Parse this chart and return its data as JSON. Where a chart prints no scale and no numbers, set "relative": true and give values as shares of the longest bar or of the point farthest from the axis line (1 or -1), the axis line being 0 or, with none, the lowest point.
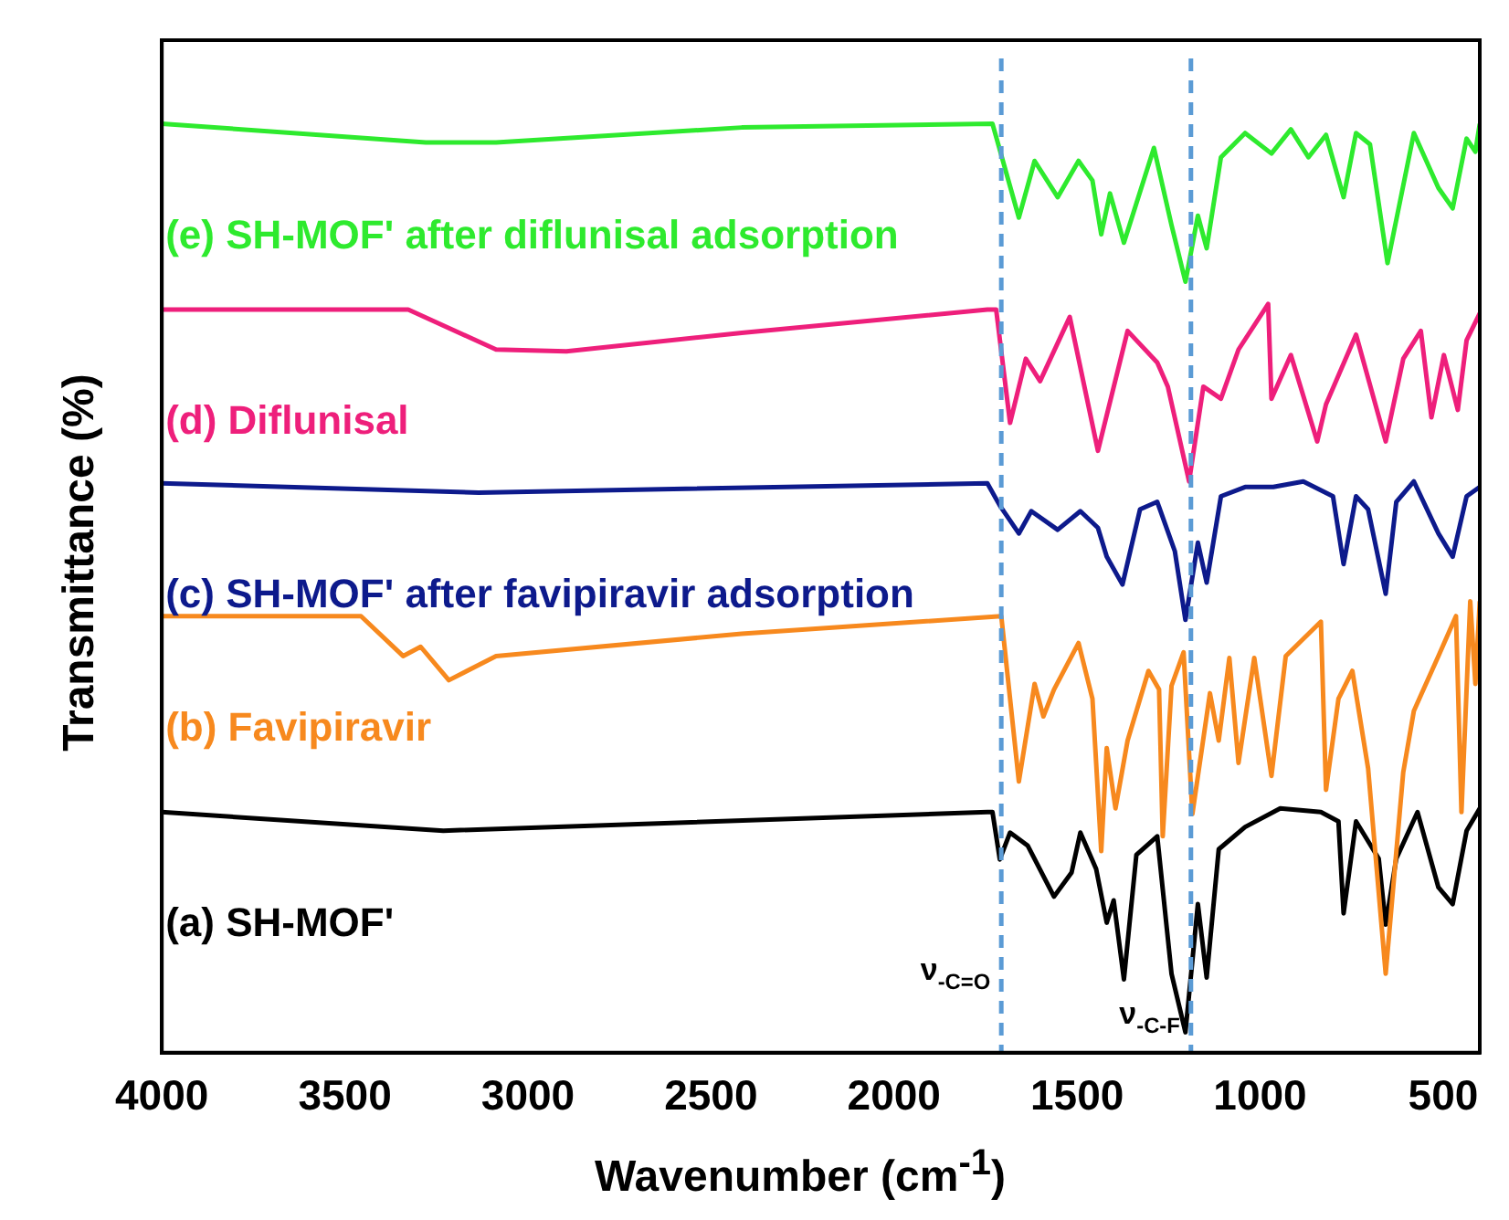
{
  "chart_data": {
    "type": "line",
    "xlabel": "Wavenumber (cm$^{-1}$)",
    "ylabel": "Transmittance (%)",
    "relative": true,
    "xlim": [
      4000,
      400
    ],
    "xticks": [
      4000,
      3500,
      3000,
      2500,
      2000,
      1500,
      1000,
      500
    ],
    "series": [
      {
        "name": "(e) SH-MOF' after diflunisal adsorption",
        "color": "#2eea2e",
        "x": [
          4000,
          3279,
          3087,
          2416,
          1731,
          1659,
          1616,
          1553,
          1496,
          1458,
          1434,
          1410,
          1372,
          1290,
          1242,
          1204,
          1170,
          1146,
          1107,
          1041,
          969,
          916,
          868,
          820,
          772,
          738,
          700,
          652,
          580,
          513,
          474,
          436,
          412,
          400
        ],
        "values": [
          1.0,
          0.98,
          0.98,
          0.996,
          1.0,
          0.899,
          0.96,
          0.921,
          0.96,
          0.939,
          0.881,
          0.925,
          0.872,
          0.974,
          0.891,
          0.83,
          0.901,
          0.866,
          0.964,
          0.99,
          0.968,
          0.994,
          0.964,
          0.988,
          0.921,
          0.99,
          0.978,
          0.85,
          0.99,
          0.931,
          0.909,
          0.984,
          0.97,
          1.0
        ]
      },
      {
        "name": "(d) Diflunisal",
        "color": "#ee1f7b",
        "x": [
          4000,
          3327,
          3087,
          2895,
          2416,
          1745,
          1721,
          1683,
          1640,
          1601,
          1520,
          1443,
          1362,
          1281,
          1252,
          1194,
          1155,
          1107,
          1059,
          978,
          969,
          916,
          844,
          820,
          738,
          657,
          609,
          561,
          532,
          498,
          460,
          436,
          400
        ],
        "values": [
          0.8,
          0.8,
          0.757,
          0.755,
          0.775,
          0.8,
          0.8,
          0.678,
          0.747,
          0.723,
          0.792,
          0.648,
          0.777,
          0.743,
          0.717,
          0.615,
          0.717,
          0.704,
          0.757,
          0.806,
          0.704,
          0.751,
          0.658,
          0.698,
          0.773,
          0.658,
          0.747,
          0.777,
          0.684,
          0.751,
          0.692,
          0.767,
          0.796
        ]
      },
      {
        "name": "(c) SH-MOF' after favipiravir adsorption",
        "color": "#0d1a8c",
        "x": [
          4000,
          3135,
          1745,
          1711,
          1659,
          1625,
          1553,
          1491,
          1443,
          1419,
          1376,
          1328,
          1281,
          1233,
          1204,
          1170,
          1146,
          1107,
          1041,
          964,
          882,
          801,
          772,
          738,
          705,
          657,
          628,
          580,
          513,
          474,
          436,
          400
        ],
        "values": [
          0.613,
          0.603,
          0.613,
          0.589,
          0.559,
          0.583,
          0.563,
          0.583,
          0.565,
          0.534,
          0.504,
          0.585,
          0.593,
          0.54,
          0.466,
          0.549,
          0.506,
          0.599,
          0.609,
          0.609,
          0.615,
          0.599,
          0.526,
          0.599,
          0.585,
          0.494,
          0.593,
          0.615,
          0.559,
          0.534,
          0.599,
          0.609
        ]
      },
      {
        "name": "(b) Favipiravir",
        "color": "#f7891e",
        "x": [
          4000,
          3456,
          3341,
          3293,
          3216,
          3087,
          2416,
          1707,
          1659,
          1616,
          1592,
          1563,
          1496,
          1458,
          1434,
          1419,
          1395,
          1362,
          1305,
          1276,
          1266,
          1242,
          1209,
          1185,
          1137,
          1113,
          1084,
          1059,
          1016,
          969,
          930,
          834,
          820,
          786,
          748,
          705,
          657,
          609,
          580,
          513,
          465,
          450,
          426,
          412,
          400
        ],
        "values": [
          0.47,
          0.47,
          0.427,
          0.437,
          0.401,
          0.427,
          0.451,
          0.47,
          0.292,
          0.397,
          0.362,
          0.391,
          0.441,
          0.381,
          0.217,
          0.328,
          0.263,
          0.336,
          0.411,
          0.391,
          0.233,
          0.395,
          0.431,
          0.257,
          0.387,
          0.336,
          0.425,
          0.312,
          0.425,
          0.298,
          0.427,
          0.464,
          0.283,
          0.381,
          0.411,
          0.306,
          0.085,
          0.302,
          0.368,
          0.427,
          0.47,
          0.259,
          0.486,
          0.397,
          0.486
        ]
      },
      {
        "name": "(a) SH-MOF'",
        "color": "#000000",
        "x": [
          4000,
          3231,
          1745,
          1731,
          1711,
          1683,
          1635,
          1563,
          1515,
          1491,
          1448,
          1419,
          1400,
          1372,
          1338,
          1281,
          1242,
          1204,
          1170,
          1146,
          1113,
          1041,
          945,
          834,
          786,
          772,
          738,
          676,
          657,
          628,
          570,
          513,
          474,
          436,
          400
        ],
        "values": [
          0.259,
          0.239,
          0.259,
          0.259,
          0.208,
          0.237,
          0.223,
          0.168,
          0.194,
          0.237,
          0.198,
          0.14,
          0.164,
          0.079,
          0.213,
          0.233,
          0.085,
          0.022,
          0.16,
          0.081,
          0.219,
          0.243,
          0.263,
          0.259,
          0.249,
          0.15,
          0.249,
          0.209,
          0.138,
          0.209,
          0.259,
          0.178,
          0.16,
          0.239,
          0.263
        ]
      }
    ],
    "ref_lines": [
      {
        "axis": "x",
        "value": 1707,
        "label": "ν$_{-C=O}$",
        "color": "#5b9bd5",
        "line_style": "dashed"
      },
      {
        "axis": "x",
        "value": 1189,
        "label": "ν$_{-C-F}$",
        "color": "#5b9bd5",
        "line_style": "dashed"
      }
    ]
  }
}
